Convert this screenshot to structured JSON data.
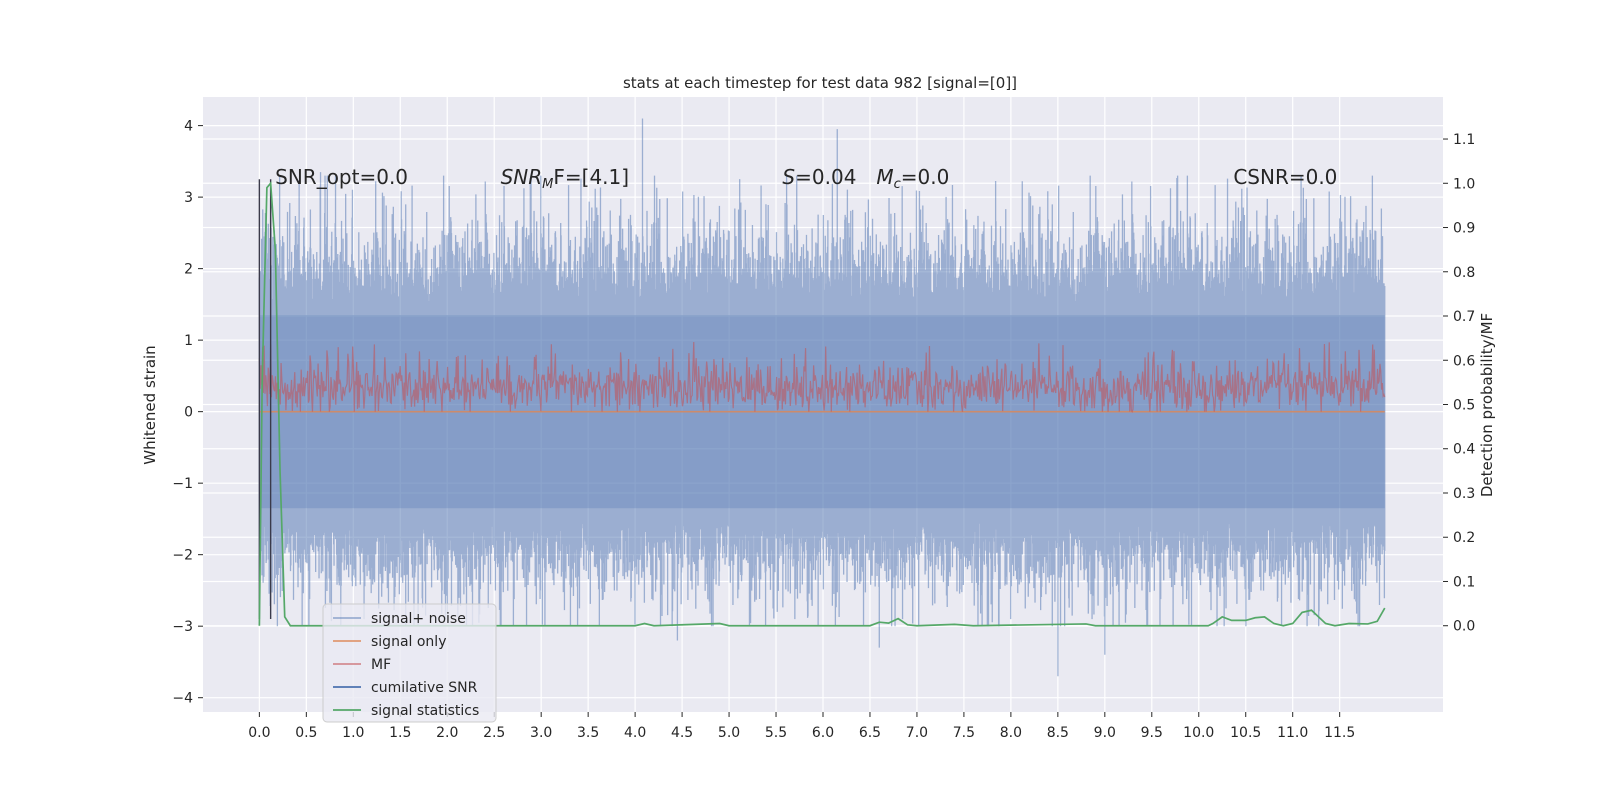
{
  "chart_data": {
    "type": "line",
    "title": "stats at each timestep for test data 982 [signal=[0]]",
    "ylabel_left": "Whitened strain",
    "ylabel_right": "Detection probability/MF",
    "xlim": [
      -0.6,
      12.6
    ],
    "ylim_left": [
      -4.2,
      4.4
    ],
    "ylim_right": [
      -0.195,
      1.195
    ],
    "x_ticks": [
      "0.0",
      "0.5",
      "1.0",
      "1.5",
      "2.0",
      "2.5",
      "3.0",
      "3.5",
      "4.0",
      "4.5",
      "5.0",
      "5.5",
      "6.0",
      "6.5",
      "7.0",
      "7.5",
      "8.0",
      "8.5",
      "9.0",
      "9.5",
      "10.0",
      "10.5",
      "11.0",
      "11.5"
    ],
    "y_ticks_left": [
      "4",
      "3",
      "2",
      "1",
      "0",
      "−1",
      "−2",
      "−3",
      "−4"
    ],
    "y_ticks_right": [
      "1.1",
      "1.0",
      "0.9",
      "0.8",
      "0.7",
      "0.6",
      "0.5",
      "0.4",
      "0.3",
      "0.2",
      "0.1",
      "0.0"
    ],
    "grid": true,
    "legend_position": "lower-left",
    "annotations": [
      {
        "text": "SNR_opt=0.0",
        "x": 0.2
      },
      {
        "text": "SNR",
        "sub": "M",
        "suffix": "F=[4.1]",
        "x": 2.6
      },
      {
        "text": "S",
        "suffix": "=0.04",
        "x": 5.6
      },
      {
        "text": "M",
        "sub": "c",
        "suffix": "=0.0",
        "x": 6.6
      },
      {
        "text": "CSNR=0.0",
        "x": 10.4
      }
    ],
    "series": [
      {
        "name": "signal+ noise",
        "color": "#4c72b0",
        "alpha": 0.5,
        "description": "noise band roughly ±1.5 with spikes up to ~4.1 and down to ~-3.7",
        "peak_points": [
          [
            4.08,
            4.1
          ],
          [
            6.15,
            3.95
          ],
          [
            8.5,
            -3.7
          ],
          [
            4.45,
            -3.2
          ],
          [
            9.0,
            -3.4
          ],
          [
            6.6,
            -3.3
          ],
          [
            0.65,
            3.35
          ],
          [
            11.85,
            3.3
          ]
        ]
      },
      {
        "name": "signal only",
        "color": "#dd8452",
        "values_constant": 0.0
      },
      {
        "name": "MF",
        "color": "#c44e52",
        "description": "matched filter output fluctuating between 0.0 and about 1.0 (whitened strain units)"
      },
      {
        "name": "cumilative SNR",
        "color": "#4c72b0",
        "description": "two vertical transients near x=0.0 and x=0.12 spanning from about -2.9 to 3.25"
      },
      {
        "name": "signal statistics",
        "color": "#55a868",
        "points": [
          [
            0.0,
            0.0
          ],
          [
            0.03,
            0.55
          ],
          [
            0.08,
            0.99
          ],
          [
            0.12,
            1.0
          ],
          [
            0.17,
            0.85
          ],
          [
            0.22,
            0.35
          ],
          [
            0.27,
            0.02
          ],
          [
            0.33,
            0.0
          ],
          [
            1.0,
            0.0
          ],
          [
            4.0,
            0.0
          ],
          [
            4.1,
            0.005
          ],
          [
            4.2,
            0.0
          ],
          [
            4.9,
            0.005
          ],
          [
            5.0,
            0.0
          ],
          [
            6.5,
            0.0
          ],
          [
            6.6,
            0.008
          ],
          [
            6.7,
            0.006
          ],
          [
            6.8,
            0.016
          ],
          [
            6.9,
            0.002
          ],
          [
            7.0,
            0.0
          ],
          [
            7.4,
            0.003
          ],
          [
            7.6,
            0.0
          ],
          [
            8.8,
            0.004
          ],
          [
            8.9,
            0.0
          ],
          [
            10.1,
            0.0
          ],
          [
            10.15,
            0.005
          ],
          [
            10.25,
            0.02
          ],
          [
            10.35,
            0.012
          ],
          [
            10.5,
            0.012
          ],
          [
            10.6,
            0.018
          ],
          [
            10.7,
            0.02
          ],
          [
            10.8,
            0.005
          ],
          [
            10.9,
            0.0
          ],
          [
            11.0,
            0.005
          ],
          [
            11.1,
            0.03
          ],
          [
            11.2,
            0.035
          ],
          [
            11.25,
            0.025
          ],
          [
            11.35,
            0.005
          ],
          [
            11.45,
            0.0
          ],
          [
            11.6,
            0.005
          ],
          [
            11.8,
            0.004
          ],
          [
            11.9,
            0.01
          ],
          [
            11.98,
            0.04
          ]
        ]
      }
    ]
  }
}
